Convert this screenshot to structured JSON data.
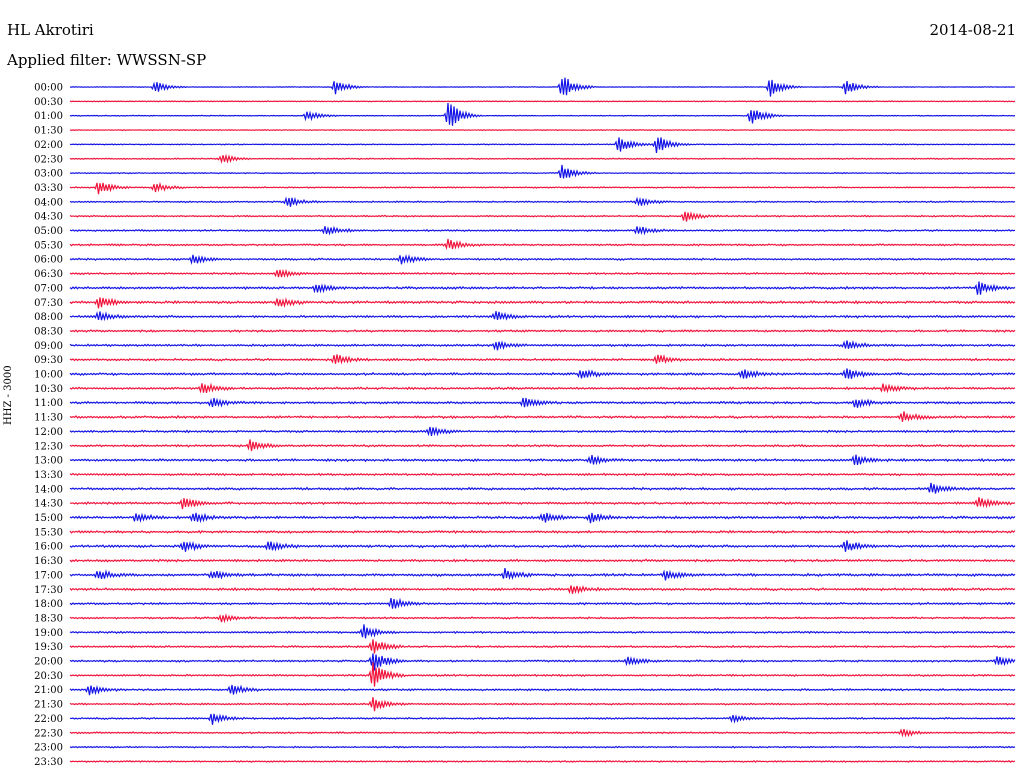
{
  "header": {
    "station": "HL Akrotiri",
    "date": "2014-08-21",
    "filter_label": "Applied filter: WWSSN-SP"
  },
  "chart_data": {
    "type": "line",
    "title": "HL Akrotiri",
    "subtitle": "Applied filter: WWSSN-SP",
    "ylabel": "HHZ - 3000",
    "xlabel": "",
    "grid": false,
    "legend": "none",
    "colors": {
      "even_row": "#1414e6",
      "odd_row": "#f0143c"
    },
    "rows": [
      {
        "label": "00:00",
        "noise": 0.15,
        "events": [
          [
            9,
            6
          ],
          [
            28,
            8
          ],
          [
            52,
            14
          ],
          [
            74,
            10
          ],
          [
            82,
            8
          ]
        ]
      },
      {
        "label": "00:30",
        "noise": 0.2,
        "events": []
      },
      {
        "label": "01:00",
        "noise": 0.2,
        "events": [
          [
            25,
            6
          ],
          [
            40,
            16
          ],
          [
            72,
            10
          ]
        ]
      },
      {
        "label": "01:30",
        "noise": 0.2,
        "events": []
      },
      {
        "label": "02:00",
        "noise": 0.25,
        "events": [
          [
            58,
            9
          ],
          [
            62,
            10
          ]
        ]
      },
      {
        "label": "02:30",
        "noise": 0.3,
        "events": [
          [
            16,
            5
          ]
        ]
      },
      {
        "label": "03:00",
        "noise": 0.25,
        "events": [
          [
            52,
            8
          ]
        ]
      },
      {
        "label": "03:30",
        "noise": 0.3,
        "events": [
          [
            3,
            8
          ],
          [
            9,
            5
          ]
        ]
      },
      {
        "label": "04:00",
        "noise": 0.35,
        "events": [
          [
            23,
            6
          ],
          [
            60,
            5
          ]
        ]
      },
      {
        "label": "04:30",
        "noise": 0.35,
        "events": [
          [
            65,
            6
          ]
        ]
      },
      {
        "label": "05:00",
        "noise": 0.4,
        "events": [
          [
            27,
            5
          ],
          [
            60,
            5
          ]
        ]
      },
      {
        "label": "05:30",
        "noise": 0.45,
        "events": [
          [
            40,
            6
          ]
        ]
      },
      {
        "label": "06:00",
        "noise": 0.45,
        "events": [
          [
            13,
            5
          ],
          [
            35,
            5
          ]
        ]
      },
      {
        "label": "06:30",
        "noise": 0.45,
        "events": [
          [
            22,
            5
          ]
        ]
      },
      {
        "label": "07:00",
        "noise": 0.55,
        "events": [
          [
            26,
            5
          ],
          [
            96,
            8
          ]
        ]
      },
      {
        "label": "07:30",
        "noise": 0.6,
        "events": [
          [
            3,
            7
          ],
          [
            22,
            5
          ]
        ]
      },
      {
        "label": "08:00",
        "noise": 0.55,
        "events": [
          [
            3,
            5
          ],
          [
            45,
            5
          ]
        ]
      },
      {
        "label": "08:30",
        "noise": 0.5,
        "events": []
      },
      {
        "label": "09:00",
        "noise": 0.5,
        "events": [
          [
            45,
            5
          ],
          [
            82,
            5
          ]
        ]
      },
      {
        "label": "09:30",
        "noise": 0.5,
        "events": [
          [
            28,
            6
          ],
          [
            62,
            6
          ]
        ]
      },
      {
        "label": "10:00",
        "noise": 0.55,
        "events": [
          [
            54,
            5
          ],
          [
            71,
            6
          ],
          [
            82,
            7
          ]
        ]
      },
      {
        "label": "10:30",
        "noise": 0.55,
        "events": [
          [
            14,
            6
          ],
          [
            86,
            5
          ]
        ]
      },
      {
        "label": "11:00",
        "noise": 0.55,
        "events": [
          [
            15,
            5
          ],
          [
            48,
            5
          ],
          [
            83,
            5
          ]
        ]
      },
      {
        "label": "11:30",
        "noise": 0.55,
        "events": [
          [
            88,
            6
          ]
        ]
      },
      {
        "label": "12:00",
        "noise": 0.5,
        "events": [
          [
            38,
            5
          ]
        ]
      },
      {
        "label": "12:30",
        "noise": 0.5,
        "events": [
          [
            19,
            6
          ]
        ]
      },
      {
        "label": "13:00",
        "noise": 0.55,
        "events": [
          [
            55,
            5
          ],
          [
            83,
            6
          ]
        ]
      },
      {
        "label": "13:30",
        "noise": 0.5,
        "events": []
      },
      {
        "label": "14:00",
        "noise": 0.55,
        "events": [
          [
            91,
            6
          ]
        ]
      },
      {
        "label": "14:30",
        "noise": 0.55,
        "events": [
          [
            12,
            7
          ],
          [
            96,
            6
          ]
        ]
      },
      {
        "label": "15:00",
        "noise": 0.6,
        "events": [
          [
            7,
            6
          ],
          [
            13,
            6
          ],
          [
            50,
            6
          ],
          [
            55,
            6
          ]
        ]
      },
      {
        "label": "15:30",
        "noise": 0.55,
        "events": []
      },
      {
        "label": "16:00",
        "noise": 0.6,
        "events": [
          [
            12,
            6
          ],
          [
            21,
            5
          ],
          [
            82,
            7
          ]
        ]
      },
      {
        "label": "16:30",
        "noise": 0.55,
        "events": []
      },
      {
        "label": "17:00",
        "noise": 0.6,
        "events": [
          [
            3,
            5
          ],
          [
            15,
            5
          ],
          [
            46,
            6
          ],
          [
            63,
            5
          ]
        ]
      },
      {
        "label": "17:30",
        "noise": 0.55,
        "events": [
          [
            53,
            5
          ]
        ]
      },
      {
        "label": "18:00",
        "noise": 0.5,
        "events": [
          [
            34,
            6
          ]
        ]
      },
      {
        "label": "18:30",
        "noise": 0.45,
        "events": [
          [
            16,
            4
          ]
        ]
      },
      {
        "label": "19:00",
        "noise": 0.45,
        "events": [
          [
            31,
            8
          ]
        ]
      },
      {
        "label": "19:30",
        "noise": 0.45,
        "events": [
          [
            32,
            9
          ]
        ]
      },
      {
        "label": "20:00",
        "noise": 0.45,
        "events": [
          [
            32,
            12
          ],
          [
            59,
            5
          ],
          [
            98,
            5
          ]
        ]
      },
      {
        "label": "20:30",
        "noise": 0.45,
        "events": [
          [
            32,
            14
          ]
        ]
      },
      {
        "label": "21:00",
        "noise": 0.45,
        "events": [
          [
            2,
            6
          ],
          [
            17,
            6
          ]
        ]
      },
      {
        "label": "21:30",
        "noise": 0.4,
        "events": [
          [
            32,
            8
          ]
        ]
      },
      {
        "label": "22:00",
        "noise": 0.4,
        "events": [
          [
            15,
            6
          ],
          [
            70,
            4
          ]
        ]
      },
      {
        "label": "22:30",
        "noise": 0.4,
        "events": [
          [
            88,
            4
          ]
        ]
      },
      {
        "label": "23:00",
        "noise": 0.35,
        "events": []
      },
      {
        "label": "23:30",
        "noise": 0.35,
        "events": []
      }
    ]
  }
}
